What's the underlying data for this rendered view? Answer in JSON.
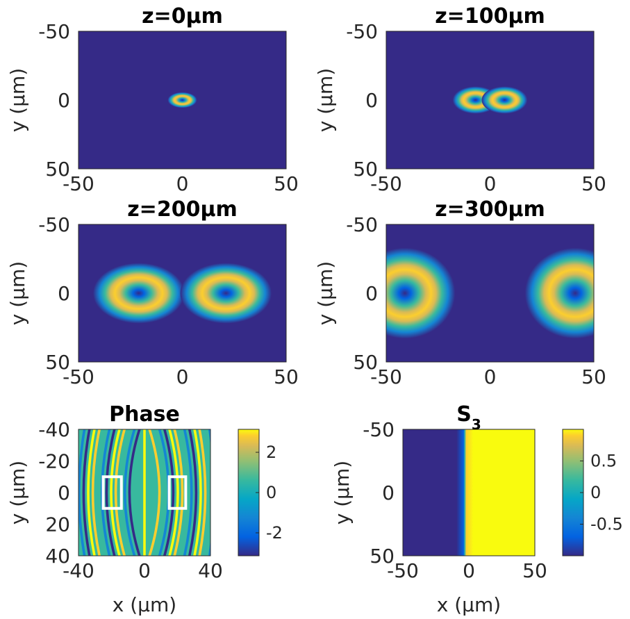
{
  "chart_data": [
    {
      "type": "heatmap",
      "id": "p0",
      "title": "z=0μm",
      "ylabel": "y (μm)",
      "xlim": [
        -50,
        50
      ],
      "ylim": [
        -50,
        50
      ],
      "xticks": [
        "-50",
        "0",
        "50"
      ],
      "yticks": [
        "-50",
        "0",
        "50"
      ],
      "colormap": "parula",
      "beams": [
        {
          "cx": 0,
          "cy": 0,
          "rx": 3.2,
          "ry": 2.6
        }
      ]
    },
    {
      "type": "heatmap",
      "id": "p1",
      "title": "z=100μm",
      "ylabel": "y (μm)",
      "xlim": [
        -50,
        50
      ],
      "ylim": [
        -50,
        50
      ],
      "xticks": [
        "-50",
        "0",
        "50"
      ],
      "yticks": [
        "-50",
        "0",
        "50"
      ],
      "colormap": "parula",
      "beams": [
        {
          "cx": -7,
          "cy": 0,
          "rx": 5,
          "ry": 4.5
        },
        {
          "cx": 7,
          "cy": 0,
          "rx": 5,
          "ry": 4.5
        }
      ]
    },
    {
      "type": "heatmap",
      "id": "p2",
      "title": "z=200μm",
      "ylabel": "y (μm)",
      "xlim": [
        -50,
        50
      ],
      "ylim": [
        -50,
        50
      ],
      "xticks": [
        "-50",
        "0",
        "50"
      ],
      "yticks": [
        "-50",
        "0",
        "50"
      ],
      "colormap": "parula",
      "beams": [
        {
          "cx": -21,
          "cy": 0,
          "rx": 10,
          "ry": 10
        },
        {
          "cx": 21,
          "cy": 0,
          "rx": 10,
          "ry": 10
        }
      ]
    },
    {
      "type": "heatmap",
      "id": "p3",
      "title": "z=300μm",
      "ylabel": "y (μm)",
      "xlim": [
        -50,
        50
      ],
      "ylim": [
        -50,
        50
      ],
      "xticks": [
        "-50",
        "0",
        "50"
      ],
      "yticks": [
        "-50",
        "0",
        "50"
      ],
      "colormap": "parula",
      "beams": [
        {
          "cx": -41,
          "cy": 0,
          "rx": 11,
          "ry": 15
        },
        {
          "cx": 41,
          "cy": 0,
          "rx": 11,
          "ry": 15
        }
      ]
    },
    {
      "type": "heatmap",
      "id": "p4",
      "title": "Phase",
      "xlabel": "x (μm)",
      "ylabel": "y (μm)",
      "xlim": [
        -40,
        40
      ],
      "ylim": [
        -40,
        40
      ],
      "xticks": [
        "-40",
        "0",
        "40"
      ],
      "yticks": [
        "-40",
        "-20",
        "0",
        "20",
        "40"
      ],
      "colormap": "parula",
      "colorbar": {
        "range": [
          -3.14,
          3.14
        ],
        "ticks": [
          "2",
          "0",
          "-2"
        ]
      },
      "boxes": [
        {
          "x0": -25,
          "x1": -14,
          "y0": -10,
          "y1": 10
        },
        {
          "x0": 15,
          "x1": 25,
          "y0": -10,
          "y1": 10
        }
      ]
    },
    {
      "type": "heatmap",
      "id": "p5",
      "title": "S",
      "title_sub": "3",
      "xlabel": "x (μm)",
      "ylabel": "y (μm)",
      "xlim": [
        -50,
        50
      ],
      "ylim": [
        -50,
        50
      ],
      "xticks": [
        "-50",
        "0",
        "50"
      ],
      "yticks": [
        "-50",
        "0",
        "50"
      ],
      "colormap": "parula",
      "transition_x": -3,
      "colorbar": {
        "range": [
          -1,
          1
        ],
        "ticks": [
          "0.5",
          "0",
          "-0.5"
        ]
      }
    }
  ]
}
